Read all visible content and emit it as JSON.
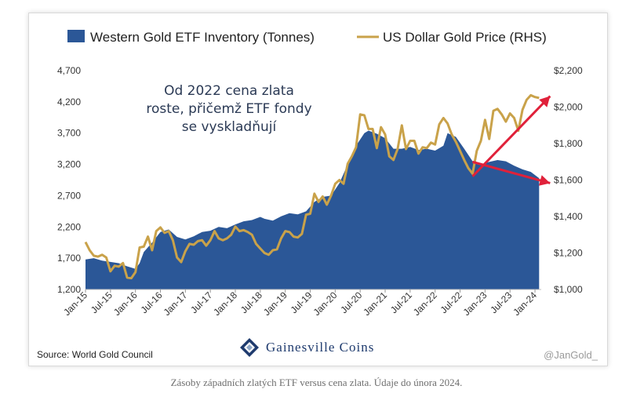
{
  "chart_data": {
    "type": "area",
    "x_tick_labels": [
      "Jan-15",
      "Jul-15",
      "Jan-16",
      "Jul-16",
      "Jan-17",
      "Jul-17",
      "Jan-18",
      "Jul-18",
      "Jan-19",
      "Jul-19",
      "Jan-20",
      "Jul-20",
      "Jan-21",
      "Jul-21",
      "Jan-22",
      "Jul-22",
      "Jan-23",
      "Jul-23",
      "Jan-24"
    ],
    "y_left": {
      "ticks": [
        "1,200",
        "1,700",
        "2,200",
        "2,700",
        "3,200",
        "3,700",
        "4,200",
        "4,700"
      ],
      "range": [
        1200,
        4700
      ],
      "unit": "Tonnes"
    },
    "y_right": {
      "ticks": [
        "$1,000",
        "$1,200",
        "$1,400",
        "$1,600",
        "$1,800",
        "$2,000",
        "$2,200"
      ],
      "range": [
        1000,
        2200
      ],
      "unit": "USD"
    },
    "series": [
      {
        "name": "Western Gold ETF Inventory (Tonnes)",
        "axis": "left",
        "color": "#2b5797",
        "points": [
          [
            "2015-01",
            1680
          ],
          [
            "2015-03",
            1700
          ],
          [
            "2015-05",
            1660
          ],
          [
            "2015-07",
            1640
          ],
          [
            "2015-09",
            1620
          ],
          [
            "2015-11",
            1570
          ],
          [
            "2016-01",
            1530
          ],
          [
            "2016-02",
            1620
          ],
          [
            "2016-03",
            1800
          ],
          [
            "2016-05",
            1950
          ],
          [
            "2016-07",
            2120
          ],
          [
            "2016-09",
            2160
          ],
          [
            "2016-11",
            2040
          ],
          [
            "2017-01",
            2000
          ],
          [
            "2017-03",
            2050
          ],
          [
            "2017-05",
            2120
          ],
          [
            "2017-07",
            2140
          ],
          [
            "2017-09",
            2200
          ],
          [
            "2017-11",
            2180
          ],
          [
            "2018-01",
            2240
          ],
          [
            "2018-03",
            2290
          ],
          [
            "2018-05",
            2310
          ],
          [
            "2018-07",
            2360
          ],
          [
            "2018-08",
            2330
          ],
          [
            "2018-10",
            2300
          ],
          [
            "2018-12",
            2370
          ],
          [
            "2019-02",
            2420
          ],
          [
            "2019-04",
            2400
          ],
          [
            "2019-06",
            2450
          ],
          [
            "2019-08",
            2600
          ],
          [
            "2019-10",
            2680
          ],
          [
            "2019-12",
            2700
          ],
          [
            "2020-02",
            2900
          ],
          [
            "2020-04",
            3200
          ],
          [
            "2020-06",
            3500
          ],
          [
            "2020-08",
            3700
          ],
          [
            "2020-09",
            3740
          ],
          [
            "2020-11",
            3690
          ],
          [
            "2021-01",
            3620
          ],
          [
            "2021-03",
            3450
          ],
          [
            "2021-05",
            3450
          ],
          [
            "2021-07",
            3480
          ],
          [
            "2021-09",
            3430
          ],
          [
            "2021-11",
            3450
          ],
          [
            "2022-01",
            3420
          ],
          [
            "2022-03",
            3500
          ],
          [
            "2022-04",
            3700
          ],
          [
            "2022-06",
            3640
          ],
          [
            "2022-08",
            3450
          ],
          [
            "2022-10",
            3250
          ],
          [
            "2022-12",
            3200
          ],
          [
            "2023-02",
            3240
          ],
          [
            "2023-04",
            3270
          ],
          [
            "2023-06",
            3250
          ],
          [
            "2023-08",
            3180
          ],
          [
            "2023-10",
            3120
          ],
          [
            "2023-12",
            3080
          ],
          [
            "2024-02",
            2980
          ]
        ]
      },
      {
        "name": "US Dollar Gold Price (RHS)",
        "axis": "right",
        "color": "#c9a24a",
        "points": [
          [
            "2015-01",
            1260
          ],
          [
            "2015-02",
            1215
          ],
          [
            "2015-03",
            1185
          ],
          [
            "2015-04",
            1180
          ],
          [
            "2015-05",
            1190
          ],
          [
            "2015-06",
            1175
          ],
          [
            "2015-07",
            1100
          ],
          [
            "2015-08",
            1130
          ],
          [
            "2015-09",
            1125
          ],
          [
            "2015-10",
            1145
          ],
          [
            "2015-11",
            1065
          ],
          [
            "2015-12",
            1062
          ],
          [
            "2016-01",
            1095
          ],
          [
            "2016-02",
            1230
          ],
          [
            "2016-03",
            1235
          ],
          [
            "2016-04",
            1290
          ],
          [
            "2016-05",
            1215
          ],
          [
            "2016-06",
            1320
          ],
          [
            "2016-07",
            1340
          ],
          [
            "2016-08",
            1310
          ],
          [
            "2016-09",
            1320
          ],
          [
            "2016-10",
            1270
          ],
          [
            "2016-11",
            1175
          ],
          [
            "2016-12",
            1150
          ],
          [
            "2017-01",
            1210
          ],
          [
            "2017-02",
            1250
          ],
          [
            "2017-03",
            1245
          ],
          [
            "2017-04",
            1265
          ],
          [
            "2017-05",
            1270
          ],
          [
            "2017-06",
            1240
          ],
          [
            "2017-07",
            1270
          ],
          [
            "2017-08",
            1320
          ],
          [
            "2017-09",
            1280
          ],
          [
            "2017-10",
            1270
          ],
          [
            "2017-11",
            1280
          ],
          [
            "2017-12",
            1300
          ],
          [
            "2018-01",
            1345
          ],
          [
            "2018-02",
            1320
          ],
          [
            "2018-03",
            1325
          ],
          [
            "2018-04",
            1315
          ],
          [
            "2018-05",
            1300
          ],
          [
            "2018-06",
            1250
          ],
          [
            "2018-07",
            1225
          ],
          [
            "2018-08",
            1200
          ],
          [
            "2018-09",
            1190
          ],
          [
            "2018-10",
            1215
          ],
          [
            "2018-11",
            1220
          ],
          [
            "2018-12",
            1280
          ],
          [
            "2019-01",
            1320
          ],
          [
            "2019-02",
            1315
          ],
          [
            "2019-03",
            1290
          ],
          [
            "2019-04",
            1285
          ],
          [
            "2019-05",
            1305
          ],
          [
            "2019-06",
            1410
          ],
          [
            "2019-07",
            1415
          ],
          [
            "2019-08",
            1525
          ],
          [
            "2019-09",
            1480
          ],
          [
            "2019-10",
            1510
          ],
          [
            "2019-11",
            1465
          ],
          [
            "2019-12",
            1515
          ],
          [
            "2020-01",
            1580
          ],
          [
            "2020-02",
            1600
          ],
          [
            "2020-03",
            1580
          ],
          [
            "2020-04",
            1690
          ],
          [
            "2020-05",
            1730
          ],
          [
            "2020-06",
            1780
          ],
          [
            "2020-07",
            1960
          ],
          [
            "2020-08",
            1955
          ],
          [
            "2020-09",
            1880
          ],
          [
            "2020-10",
            1880
          ],
          [
            "2020-11",
            1775
          ],
          [
            "2020-12",
            1890
          ],
          [
            "2021-01",
            1850
          ],
          [
            "2021-02",
            1730
          ],
          [
            "2021-03",
            1710
          ],
          [
            "2021-04",
            1770
          ],
          [
            "2021-05",
            1900
          ],
          [
            "2021-06",
            1770
          ],
          [
            "2021-07",
            1815
          ],
          [
            "2021-08",
            1815
          ],
          [
            "2021-09",
            1745
          ],
          [
            "2021-10",
            1780
          ],
          [
            "2021-11",
            1775
          ],
          [
            "2021-12",
            1805
          ],
          [
            "2022-01",
            1795
          ],
          [
            "2022-02",
            1905
          ],
          [
            "2022-03",
            1940
          ],
          [
            "2022-04",
            1910
          ],
          [
            "2022-05",
            1850
          ],
          [
            "2022-06",
            1810
          ],
          [
            "2022-07",
            1760
          ],
          [
            "2022-08",
            1710
          ],
          [
            "2022-09",
            1665
          ],
          [
            "2022-10",
            1635
          ],
          [
            "2022-11",
            1760
          ],
          [
            "2022-12",
            1815
          ],
          [
            "2023-01",
            1930
          ],
          [
            "2023-02",
            1825
          ],
          [
            "2023-03",
            1980
          ],
          [
            "2023-04",
            1990
          ],
          [
            "2023-05",
            1960
          ],
          [
            "2023-06",
            1920
          ],
          [
            "2023-07",
            1965
          ],
          [
            "2023-08",
            1940
          ],
          [
            "2023-09",
            1870
          ],
          [
            "2023-10",
            1985
          ],
          [
            "2023-11",
            2040
          ],
          [
            "2023-12",
            2065
          ],
          [
            "2024-01",
            2055
          ],
          [
            "2024-02",
            2050
          ]
        ]
      }
    ],
    "annotation": [
      "Od 2022 cena zlata",
      "roste, přičemž ETF fondy",
      "se vyskladňují"
    ],
    "trend_arrows": [
      {
        "series": "US Dollar Gold Price (RHS)",
        "from": [
          "2022-10",
          1620
        ],
        "to": [
          "2024-02",
          2060
        ],
        "color": "#e0213a"
      },
      {
        "series": "Western Gold ETF Inventory (Tonnes)",
        "from": [
          "2022-10",
          3240
        ],
        "to": [
          "2024-02",
          2900
        ],
        "color": "#e0213a"
      }
    ]
  },
  "footer": {
    "source": "Source: World Gold Council",
    "brand": "Gainesville Coins",
    "handle": "@JanGold_"
  },
  "caption": "Zásoby západních zlatých ETF versus cena zlata. Údaje do února 2024."
}
